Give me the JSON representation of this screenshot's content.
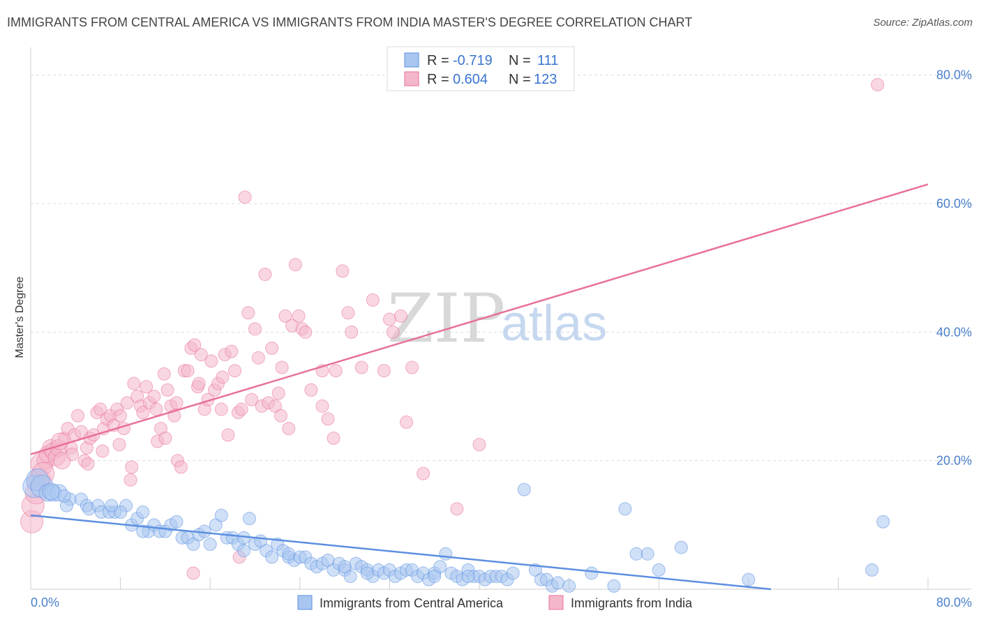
{
  "title": "IMMIGRANTS FROM CENTRAL AMERICA VS IMMIGRANTS FROM INDIA MASTER'S DEGREE CORRELATION CHART",
  "source": "Source: ZipAtlas.com",
  "colors": {
    "blue": "#5b8fe0",
    "blue_fill": "#a9c6f0",
    "pink": "#e8709a",
    "pink_fill": "#f4b6ca",
    "tick": "#4a7fcc"
  },
  "legend_box": {
    "rows": [
      {
        "r_label": "R =",
        "r_value": "-0.719",
        "n_label": "N =",
        "n_value": "111"
      },
      {
        "r_label": "R =",
        "r_value": "0.604",
        "n_label": "N =",
        "n_value": "123"
      }
    ]
  },
  "chart_data": {
    "type": "scatter",
    "title": "IMMIGRANTS FROM CENTRAL AMERICA VS IMMIGRANTS FROM INDIA MASTER'S DEGREE CORRELATION CHART",
    "xlabel": "",
    "ylabel": "Master's Degree",
    "xlim": [
      0,
      80
    ],
    "ylim": [
      0,
      83
    ],
    "x_tick_labels": [
      "0.0%",
      "80.0%"
    ],
    "y_ticks": [
      20,
      40,
      60,
      80
    ],
    "y_tick_labels": [
      "20.0%",
      "40.0%",
      "60.0%",
      "80.0%"
    ],
    "grid": true,
    "legend_position": "bottom",
    "series": [
      {
        "name": "Immigrants from Central America",
        "color": "#5b8fe0",
        "r": -0.719,
        "n": 111,
        "trend": [
          [
            0,
            11.5
          ],
          [
            66,
            0
          ]
        ],
        "points": [
          [
            0.3,
            16
          ],
          [
            0.6,
            17
          ],
          [
            1,
            16
          ],
          [
            1.5,
            15
          ],
          [
            2,
            15
          ],
          [
            2.5,
            15
          ],
          [
            3.5,
            14
          ],
          [
            3.2,
            13
          ],
          [
            4.5,
            14
          ],
          [
            5,
            13
          ],
          [
            5.2,
            12.5
          ],
          [
            6,
            13
          ],
          [
            6.3,
            12
          ],
          [
            7,
            12
          ],
          [
            7.5,
            12
          ],
          [
            8.5,
            13
          ],
          [
            9,
            10
          ],
          [
            9.5,
            11
          ],
          [
            10,
            12
          ],
          [
            10.5,
            9
          ],
          [
            11,
            10
          ],
          [
            11.5,
            9
          ],
          [
            12,
            9
          ],
          [
            12.5,
            10
          ],
          [
            13,
            10.5
          ],
          [
            13.5,
            8
          ],
          [
            14,
            8
          ],
          [
            14.5,
            7
          ],
          [
            15,
            8.5
          ],
          [
            15.5,
            9
          ],
          [
            16,
            7
          ],
          [
            16.5,
            10
          ],
          [
            17,
            11.5
          ],
          [
            17.5,
            8
          ],
          [
            18,
            8
          ],
          [
            18.5,
            7
          ],
          [
            19,
            6
          ],
          [
            19.5,
            11
          ],
          [
            20,
            7
          ],
          [
            20.5,
            7.5
          ],
          [
            21,
            6
          ],
          [
            21.5,
            5
          ],
          [
            22,
            7
          ],
          [
            22.5,
            6
          ],
          [
            23,
            5
          ],
          [
            23.5,
            4.5
          ],
          [
            24,
            5
          ],
          [
            24.5,
            5
          ],
          [
            25,
            4
          ],
          [
            25.5,
            3.5
          ],
          [
            26,
            4
          ],
          [
            26.5,
            4.5
          ],
          [
            27,
            3
          ],
          [
            27.5,
            4
          ],
          [
            28,
            3
          ],
          [
            28.5,
            2
          ],
          [
            29,
            4
          ],
          [
            29.5,
            3.5
          ],
          [
            30,
            3
          ],
          [
            30.5,
            2
          ],
          [
            31,
            3
          ],
          [
            31.5,
            2.5
          ],
          [
            32,
            3
          ],
          [
            32.5,
            2
          ],
          [
            33,
            2.5
          ],
          [
            33.5,
            3
          ],
          [
            34,
            3
          ],
          [
            34.5,
            2
          ],
          [
            35,
            2.5
          ],
          [
            35.5,
            1.5
          ],
          [
            36,
            2.5
          ],
          [
            36.5,
            3.5
          ],
          [
            37,
            5.5
          ],
          [
            37.5,
            2.5
          ],
          [
            38,
            2
          ],
          [
            38.5,
            1.5
          ],
          [
            39,
            3
          ],
          [
            39.5,
            2
          ],
          [
            40,
            2
          ],
          [
            40.5,
            1.5
          ],
          [
            41,
            2
          ],
          [
            41.5,
            2
          ],
          [
            42,
            2
          ],
          [
            42.5,
            1.5
          ],
          [
            43,
            2.5
          ],
          [
            44,
            15.5
          ],
          [
            45,
            3
          ],
          [
            45.5,
            1.5
          ],
          [
            46,
            1.5
          ],
          [
            46.5,
            0.5
          ],
          [
            47,
            1
          ],
          [
            48,
            0.5
          ],
          [
            50,
            2.5
          ],
          [
            52,
            0.5
          ],
          [
            53,
            12.5
          ],
          [
            54,
            5.5
          ],
          [
            55,
            5.5
          ],
          [
            56,
            3
          ],
          [
            58,
            6.5
          ],
          [
            64,
            1.5
          ],
          [
            75,
            3
          ],
          [
            76,
            10.5
          ],
          [
            8,
            12
          ],
          [
            10,
            9
          ],
          [
            3,
            14.5
          ],
          [
            1.8,
            15.2
          ],
          [
            7.2,
            13
          ],
          [
            19,
            8
          ],
          [
            23,
            5.5
          ],
          [
            28,
            3.5
          ],
          [
            30,
            2.5
          ],
          [
            36,
            2
          ],
          [
            39,
            2
          ]
        ]
      },
      {
        "name": "Immigrants from India",
        "color": "#e8709a",
        "r": 0.604,
        "n": 123,
        "trend": [
          [
            0,
            21
          ],
          [
            80,
            63
          ]
        ],
        "points": [
          [
            0.1,
            10.5
          ],
          [
            0.2,
            13
          ],
          [
            0.5,
            15
          ],
          [
            0.8,
            17
          ],
          [
            1,
            19.5
          ],
          [
            1.3,
            20
          ],
          [
            1.5,
            21
          ],
          [
            1.8,
            22
          ],
          [
            2,
            21.5
          ],
          [
            2.3,
            20.5
          ],
          [
            2.5,
            22
          ],
          [
            2.8,
            20
          ],
          [
            3,
            23.5
          ],
          [
            3.3,
            25
          ],
          [
            3.6,
            22
          ],
          [
            3.9,
            24
          ],
          [
            4.2,
            27
          ],
          [
            4.5,
            24.5
          ],
          [
            4.8,
            20
          ],
          [
            5,
            22
          ],
          [
            5.3,
            23.5
          ],
          [
            5.6,
            24
          ],
          [
            5.9,
            27.5
          ],
          [
            6.2,
            28
          ],
          [
            6.5,
            25
          ],
          [
            6.8,
            26.5
          ],
          [
            7.1,
            27
          ],
          [
            7.4,
            25.5
          ],
          [
            7.7,
            28
          ],
          [
            8,
            27
          ],
          [
            8.3,
            25
          ],
          [
            8.6,
            29
          ],
          [
            8.9,
            17
          ],
          [
            9.2,
            32
          ],
          [
            9.5,
            30
          ],
          [
            9.8,
            28.5
          ],
          [
            10,
            27.5
          ],
          [
            10.3,
            31.5
          ],
          [
            10.6,
            29
          ],
          [
            11,
            30
          ],
          [
            11.3,
            23
          ],
          [
            11.6,
            25
          ],
          [
            11.9,
            33.5
          ],
          [
            12.2,
            31
          ],
          [
            12.5,
            28.5
          ],
          [
            12.8,
            27
          ],
          [
            13.1,
            20
          ],
          [
            13.4,
            19
          ],
          [
            13.7,
            34
          ],
          [
            14,
            34
          ],
          [
            14.3,
            37.5
          ],
          [
            14.6,
            38
          ],
          [
            14.9,
            31.5
          ],
          [
            15.2,
            36.5
          ],
          [
            15.5,
            28
          ],
          [
            15.8,
            29.5
          ],
          [
            16.1,
            35.5
          ],
          [
            16.4,
            31
          ],
          [
            16.7,
            32
          ],
          [
            17,
            28
          ],
          [
            17.3,
            36.5
          ],
          [
            17.6,
            24
          ],
          [
            17.9,
            37
          ],
          [
            18.2,
            34
          ],
          [
            18.5,
            27.5
          ],
          [
            18.8,
            28
          ],
          [
            19.1,
            61
          ],
          [
            19.4,
            43
          ],
          [
            19.7,
            29.5
          ],
          [
            20,
            40.5
          ],
          [
            20.3,
            36
          ],
          [
            20.6,
            28.5
          ],
          [
            20.9,
            49
          ],
          [
            21.2,
            29
          ],
          [
            21.5,
            37.5
          ],
          [
            21.8,
            28.5
          ],
          [
            22.1,
            30.5
          ],
          [
            22.4,
            34.5
          ],
          [
            22.7,
            42.5
          ],
          [
            23,
            25
          ],
          [
            23.3,
            41
          ],
          [
            23.6,
            50.5
          ],
          [
            23.9,
            42.5
          ],
          [
            24.2,
            40.5
          ],
          [
            24.5,
            40
          ],
          [
            25,
            31
          ],
          [
            26,
            28.5
          ],
          [
            26.5,
            26.5
          ],
          [
            27,
            23.5
          ],
          [
            27.2,
            34
          ],
          [
            27.8,
            49.5
          ],
          [
            28.3,
            43
          ],
          [
            28.6,
            40
          ],
          [
            29.5,
            34.5
          ],
          [
            30.5,
            45
          ],
          [
            31.5,
            34
          ],
          [
            32,
            42
          ],
          [
            32.3,
            40
          ],
          [
            33,
            42.5
          ],
          [
            33.5,
            26
          ],
          [
            34,
            34.5
          ],
          [
            35,
            18
          ],
          [
            38,
            12.5
          ],
          [
            40,
            22.5
          ],
          [
            75.5,
            78.5
          ],
          [
            14.5,
            2.5
          ],
          [
            18.6,
            5
          ],
          [
            9,
            19
          ],
          [
            11.2,
            28
          ],
          [
            7.9,
            22.5
          ],
          [
            5.1,
            19.5
          ],
          [
            3.7,
            21
          ],
          [
            2.6,
            23
          ],
          [
            15,
            32
          ],
          [
            13,
            29
          ],
          [
            26,
            34
          ],
          [
            22.3,
            27
          ],
          [
            6.4,
            21.5
          ],
          [
            1.1,
            18
          ],
          [
            17.1,
            33
          ],
          [
            12,
            23.5
          ]
        ]
      }
    ]
  }
}
